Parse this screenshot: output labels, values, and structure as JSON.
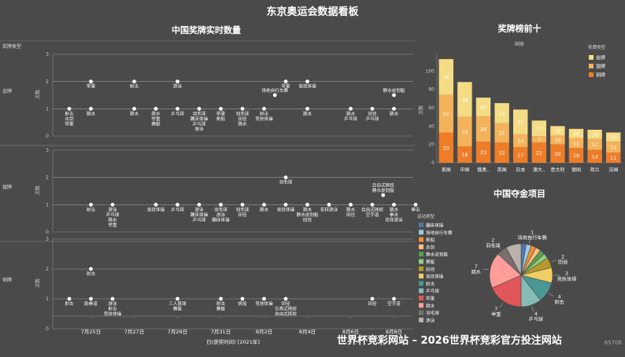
{
  "header": {
    "title": "东京奥运会数据看板"
  },
  "timeline": {
    "title": "中国奖牌实时数量",
    "legend_title": "奖牌类型",
    "y_label": "次数",
    "x_title": "日(获奖时间) [2021年]",
    "x_ticks": [
      "7月25日",
      "7月27日",
      "7月29日",
      "7月31日",
      "8月2日",
      "8月4日",
      "8月6日",
      "8月8日"
    ],
    "start": "7月24日",
    "rows": [
      {
        "name": "金牌",
        "ymax": 3,
        "ticks": [
          0,
          1,
          2,
          3
        ],
        "events": [
          {
            "day": 0,
            "count": 1,
            "labels": [
              "射击",
              "击剑",
              "举重"
            ],
            "pos": "below"
          },
          {
            "day": 1,
            "count": 2,
            "labels": [
              "举重"
            ],
            "pos": "below"
          },
          {
            "day": 1,
            "count": 1,
            "labels": [
              "跳水"
            ],
            "pos": "below"
          },
          {
            "day": 3,
            "count": 2,
            "labels": [
              "射击"
            ],
            "pos": "below"
          },
          {
            "day": 3,
            "count": 1,
            "labels": [
              "跳水"
            ],
            "pos": "below"
          },
          {
            "day": 4,
            "count": 1,
            "labels": [
              "跳水",
              "举重",
              "赛艇"
            ],
            "pos": "below"
          },
          {
            "day": 5,
            "count": 2,
            "labels": [
              "游泳"
            ],
            "pos": "below"
          },
          {
            "day": 5,
            "count": 1,
            "labels": [
              "乒乓球"
            ],
            "pos": "below"
          },
          {
            "day": 6,
            "count": 1,
            "labels": [
              "羽毛球",
              "蹦床体操",
              "乒乓球",
              "游泳"
            ],
            "pos": "below"
          },
          {
            "day": 7,
            "count": 1,
            "labels": [
              "举重",
              "帆船"
            ],
            "pos": "below"
          },
          {
            "day": 8,
            "count": 1,
            "labels": [
              "羽毛球",
              "田径",
              "跳水"
            ],
            "pos": "below"
          },
          {
            "day": 9,
            "count": 1,
            "labels": [
              "射击",
              "竞技体操"
            ],
            "pos": "below"
          },
          {
            "day": 9.5,
            "count": 1.5,
            "labels": [
              "场地自行车赛"
            ],
            "pos": "above"
          },
          {
            "day": 10,
            "count": 2,
            "labels": [
              "举重"
            ],
            "pos": "below"
          },
          {
            "day": 11,
            "count": 2,
            "labels": [
              "竞技体操"
            ],
            "pos": "below"
          },
          {
            "day": 11,
            "count": 1,
            "labels": [
              "跳水"
            ],
            "pos": "below"
          },
          {
            "day": 13,
            "count": 1,
            "labels": [
              "跳水",
              "乒乓球"
            ],
            "pos": "below"
          },
          {
            "day": 14,
            "count": 1,
            "labels": [
              "田径",
              "乒乓球"
            ],
            "pos": "below"
          },
          {
            "day": 15,
            "count": 1.5,
            "labels": [
              "静水皮划艇"
            ],
            "pos": "above"
          },
          {
            "day": 15,
            "count": 1,
            "labels": [
              "跳水"
            ],
            "pos": "below"
          }
        ]
      },
      {
        "name": "银牌",
        "ymax": 3,
        "ticks": [
          0,
          1,
          2,
          3
        ],
        "events": [
          {
            "day": 1,
            "count": 1,
            "labels": [
              "射击"
            ],
            "pos": "below"
          },
          {
            "day": 2,
            "count": 1,
            "labels": [
              "游泳",
              "乒乓球",
              "跳水",
              "举重"
            ],
            "pos": "below"
          },
          {
            "day": 4,
            "count": 1,
            "labels": [
              "竞技体操"
            ],
            "pos": "below"
          },
          {
            "day": 5,
            "count": 1,
            "labels": [
              "乒乓球"
            ],
            "pos": "below"
          },
          {
            "day": 6,
            "count": 1,
            "labels": [
              "游泳",
              "蹦床体操",
              "乒乓球"
            ],
            "pos": "below"
          },
          {
            "day": 7,
            "count": 1,
            "labels": [
              "羽毛球",
              "游泳",
              "蹦床体操"
            ],
            "pos": "below"
          },
          {
            "day": 8,
            "count": 1,
            "labels": [
              "羽毛球",
              "田径"
            ],
            "pos": "below"
          },
          {
            "day": 9,
            "count": 1,
            "labels": [
              "跳水"
            ],
            "pos": "below"
          },
          {
            "day": 10,
            "count": 2,
            "labels": [
              "羽毛球"
            ],
            "pos": "below"
          },
          {
            "day": 10,
            "count": 1,
            "labels": [
              "竞技体操"
            ],
            "pos": "below"
          },
          {
            "day": 11,
            "count": 1,
            "labels": [
              "跳水",
              "静水皮划艇",
              "田径"
            ],
            "pos": "below"
          },
          {
            "day": 12,
            "count": 1,
            "labels": [
              "花样游泳"
            ],
            "pos": "below"
          },
          {
            "day": 13,
            "count": 1,
            "labels": [
              "跳水",
              "田径"
            ],
            "pos": "below"
          },
          {
            "day": 14,
            "count": 1,
            "labels": [
              "自由式摔跤",
              "空手道"
            ],
            "pos": "below"
          },
          {
            "day": 14.5,
            "count": 1.35,
            "labels": [
              "自由式摔跤",
              "静水皮划艇"
            ],
            "pos": "above"
          },
          {
            "day": 15,
            "count": 1,
            "labels": [
              "跳水",
              "拳击",
              "花样游泳"
            ],
            "pos": "below"
          },
          {
            "day": 16,
            "count": 1,
            "labels": [
              "拳击"
            ],
            "pos": "below"
          }
        ]
      },
      {
        "name": "铜牌",
        "ymax": 3,
        "ticks": [
          0,
          1,
          2,
          3
        ],
        "events": [
          {
            "day": 1,
            "count": 2,
            "labels": [
              "射击"
            ],
            "pos": "below"
          },
          {
            "day": 0,
            "count": 1,
            "labels": [
              "射击"
            ],
            "pos": "below"
          },
          {
            "day": 1,
            "count": 1,
            "labels": [
              "跆拳道"
            ],
            "pos": "below"
          },
          {
            "day": 2,
            "count": 1,
            "labels": [
              "游泳",
              "射击",
              "竞技体操"
            ],
            "pos": "below"
          },
          {
            "day": 5,
            "count": 1,
            "labels": [
              "三人篮球",
              "赛艇"
            ],
            "pos": "below"
          },
          {
            "day": 7,
            "count": 1,
            "labels": [
              "射击",
              "赛艇"
            ],
            "pos": "below"
          },
          {
            "day": 8,
            "count": 1,
            "labels": [
              "帆船"
            ],
            "pos": "below"
          },
          {
            "day": 9,
            "count": 1,
            "labels": [
              "竞技体操"
            ],
            "pos": "below"
          },
          {
            "day": 10,
            "count": 1,
            "labels": [
              "田径",
              "古典式摔跤",
              "自由式摔跤"
            ],
            "pos": "below"
          },
          {
            "day": 14,
            "count": 1,
            "labels": [
              "田径"
            ],
            "pos": "below"
          },
          {
            "day": 15,
            "count": 1,
            "labels": [
              "空手道"
            ],
            "pos": "below"
          }
        ]
      }
    ]
  },
  "top10": {
    "title": "奖牌榜前十",
    "x_label": "国家",
    "y_label": "次数",
    "legend_title": "奖牌类型",
    "legend": [
      "金牌",
      "银牌",
      "铜牌"
    ],
    "colors": {
      "gold": "#f5dc84",
      "silver": "#f4b25a",
      "bronze": "#ef7d28"
    },
    "y_ticks": [
      0,
      20,
      40,
      60,
      80,
      100
    ],
    "ymax": 120
  },
  "pie": {
    "title": "中国夺金项目",
    "legend_title": "运动类型"
  },
  "chart_data": [
    {
      "type": "bar",
      "title": "奖牌榜前十",
      "xlabel": "国家",
      "ylabel": "次数",
      "stacked": true,
      "categories": [
        "美国",
        "中国",
        "俄奥..",
        "英国",
        "日本",
        "澳大..",
        "意大利",
        "德国",
        "荷兰",
        "法国"
      ],
      "series": [
        {
          "name": "铜牌",
          "values": [
            33,
            18,
            23,
            22,
            17,
            22,
            20,
            16,
            14,
            11
          ]
        },
        {
          "name": "银牌",
          "values": [
            41,
            32,
            28,
            21,
            14,
            7,
            10,
            11,
            12,
            12
          ]
        },
        {
          "name": "金牌",
          "values": [
            39,
            38,
            20,
            22,
            27,
            17,
            10,
            10,
            10,
            10
          ]
        }
      ],
      "ylim": [
        0,
        120
      ],
      "legend_position": "top-right"
    },
    {
      "type": "pie",
      "title": "中国夺金项目",
      "slices": [
        {
          "name": "蹦床体操",
          "value": 1,
          "color": "#4e79a7"
        },
        {
          "name": "场地自行车赛",
          "value": 1,
          "color": "#9ecae9"
        },
        {
          "name": "帆船",
          "value": 1,
          "color": "#f28e2b"
        },
        {
          "name": "赤剑",
          "value": 1,
          "color": "#ffbe7d"
        },
        {
          "name": "静水皮划艇",
          "value": 1,
          "color": "#59a14f"
        },
        {
          "name": "赛艇",
          "value": 1,
          "color": "#8cd17d"
        },
        {
          "name": "田径",
          "value": 2,
          "color": "#b6992d"
        },
        {
          "name": "竞技体操",
          "value": 3,
          "color": "#f1ce63"
        },
        {
          "name": "射击",
          "value": 4,
          "color": "#499894"
        },
        {
          "name": "乒乓球",
          "value": 4,
          "color": "#86bcb6"
        },
        {
          "name": "举重",
          "value": 7,
          "color": "#e15759"
        },
        {
          "name": "跳水",
          "value": 7,
          "color": "#ff9d9a"
        },
        {
          "name": "羽毛球",
          "value": 2,
          "color": "#79706e"
        },
        {
          "name": "游泳",
          "value": 3,
          "color": "#bab0ac"
        }
      ],
      "labels": [
        {
          "slice": "羽毛球",
          "text": [
            "2",
            "羽毛球"
          ]
        },
        {
          "slice": "场地自行车赛",
          "text": [
            "1",
            "场地自行车赛"
          ]
        },
        {
          "slice": "田径",
          "text": [
            "2",
            "田径"
          ]
        },
        {
          "slice": "竞技体操",
          "text": [
            "3",
            "竞技体操"
          ]
        },
        {
          "slice": "射击",
          "text": [
            "4",
            "射击"
          ]
        },
        {
          "slice": "乒乓球",
          "text": [
            "4",
            "乒乓球"
          ]
        },
        {
          "slice": "举重",
          "text": [
            "7",
            "举重"
          ]
        },
        {
          "slice": "跳水",
          "text": [
            "7",
            "跳水"
          ]
        }
      ]
    }
  ],
  "watermark": "世界杯竞彩网站 – 2026世界杯竞彩官方投注网站",
  "watermark_id": "65708"
}
